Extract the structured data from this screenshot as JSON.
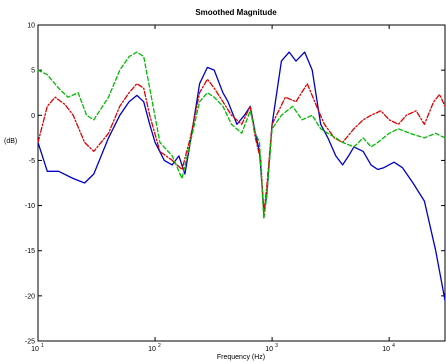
{
  "chart_data": {
    "type": "line",
    "title": "Smoothed Magnitude",
    "xlabel": "Frequency (Hz)",
    "ylabel": "(dB)",
    "xscale": "log",
    "xlim": [
      10,
      30000
    ],
    "ylim": [
      -25,
      10
    ],
    "grid": false,
    "yticks": [
      10,
      5,
      0,
      -5,
      -10,
      -15,
      -20,
      -25
    ],
    "ytick_labels": [
      "10",
      "5",
      "0",
      "-5",
      "-10",
      "-15",
      "-20",
      "-25"
    ],
    "xticks": [
      {
        "value": 10,
        "base": "10",
        "exp": "1"
      },
      {
        "value": 100,
        "base": "10",
        "exp": "2"
      },
      {
        "value": 1000,
        "base": "10",
        "exp": "3"
      },
      {
        "value": 10000,
        "base": "10",
        "exp": "4"
      }
    ],
    "series": [
      {
        "style": "solid",
        "color": "#0000cc",
        "points": [
          [
            10,
            -3
          ],
          [
            12,
            -6.2
          ],
          [
            15,
            -6.2
          ],
          [
            20,
            -7
          ],
          [
            25,
            -7.5
          ],
          [
            30,
            -6.5
          ],
          [
            40,
            -2.5
          ],
          [
            50,
            0
          ],
          [
            60,
            1.5
          ],
          [
            70,
            2.2
          ],
          [
            80,
            1.5
          ],
          [
            90,
            -1
          ],
          [
            100,
            -3
          ],
          [
            120,
            -5
          ],
          [
            140,
            -5.5
          ],
          [
            160,
            -4.5
          ],
          [
            180,
            -6.5
          ],
          [
            200,
            -3
          ],
          [
            240,
            3.5
          ],
          [
            280,
            5.3
          ],
          [
            320,
            5
          ],
          [
            380,
            2.5
          ],
          [
            420,
            1.5
          ],
          [
            500,
            -1
          ],
          [
            580,
            0
          ],
          [
            650,
            1
          ],
          [
            720,
            -2
          ],
          [
            780,
            -4
          ],
          [
            850,
            -10.5
          ],
          [
            900,
            -9
          ],
          [
            1000,
            -1
          ],
          [
            1200,
            6
          ],
          [
            1400,
            7
          ],
          [
            1600,
            6
          ],
          [
            1900,
            7
          ],
          [
            2200,
            5
          ],
          [
            2600,
            -1
          ],
          [
            3000,
            -2.5
          ],
          [
            3500,
            -4.5
          ],
          [
            4000,
            -5.5
          ],
          [
            4500,
            -4.5
          ],
          [
            5000,
            -3.5
          ],
          [
            6000,
            -4
          ],
          [
            7000,
            -5.5
          ],
          [
            8000,
            -6
          ],
          [
            9000,
            -5.8
          ],
          [
            11000,
            -5.2
          ],
          [
            13000,
            -5.8
          ],
          [
            16000,
            -7.5
          ],
          [
            20000,
            -9.5
          ],
          [
            25000,
            -15
          ],
          [
            30000,
            -20.5
          ]
        ]
      },
      {
        "style": "dashdot",
        "color": "#dd0000",
        "points": [
          [
            10,
            -3
          ],
          [
            12,
            1
          ],
          [
            14,
            2
          ],
          [
            17,
            1.2
          ],
          [
            20,
            0
          ],
          [
            25,
            -3
          ],
          [
            30,
            -4
          ],
          [
            40,
            -2
          ],
          [
            50,
            1
          ],
          [
            60,
            2.5
          ],
          [
            70,
            3.5
          ],
          [
            80,
            3
          ],
          [
            90,
            0
          ],
          [
            110,
            -4
          ],
          [
            140,
            -5
          ],
          [
            170,
            -6
          ],
          [
            200,
            -2.5
          ],
          [
            240,
            2.5
          ],
          [
            280,
            4
          ],
          [
            320,
            3
          ],
          [
            380,
            1.5
          ],
          [
            450,
            0
          ],
          [
            550,
            -1
          ],
          [
            650,
            1
          ],
          [
            720,
            -2.5
          ],
          [
            800,
            -5
          ],
          [
            850,
            -11
          ],
          [
            900,
            -8
          ],
          [
            1000,
            -1
          ],
          [
            1300,
            2
          ],
          [
            1600,
            1.5
          ],
          [
            2000,
            3.5
          ],
          [
            2400,
            1
          ],
          [
            2800,
            -1
          ],
          [
            3400,
            -2.5
          ],
          [
            4000,
            -3
          ],
          [
            5000,
            -1.5
          ],
          [
            6000,
            -0.5
          ],
          [
            7000,
            0
          ],
          [
            8500,
            0.5
          ],
          [
            10000,
            -0.5
          ],
          [
            12000,
            -1
          ],
          [
            14000,
            0
          ],
          [
            17000,
            0.5
          ],
          [
            20000,
            -1
          ],
          [
            24000,
            1.5
          ],
          [
            27000,
            2.3
          ],
          [
            30000,
            1
          ]
        ]
      },
      {
        "style": "dashed",
        "color": "#00bb00",
        "points": [
          [
            10,
            5
          ],
          [
            12,
            4.5
          ],
          [
            15,
            3
          ],
          [
            18,
            2
          ],
          [
            22,
            2.5
          ],
          [
            26,
            0
          ],
          [
            30,
            -0.5
          ],
          [
            40,
            2
          ],
          [
            50,
            5
          ],
          [
            60,
            6.5
          ],
          [
            70,
            7
          ],
          [
            80,
            6.5
          ],
          [
            90,
            3
          ],
          [
            110,
            -3
          ],
          [
            140,
            -4.5
          ],
          [
            170,
            -7
          ],
          [
            200,
            -3
          ],
          [
            240,
            1.5
          ],
          [
            280,
            2.5
          ],
          [
            320,
            2
          ],
          [
            380,
            1
          ],
          [
            450,
            -1
          ],
          [
            550,
            -2
          ],
          [
            650,
            0.5
          ],
          [
            720,
            -2
          ],
          [
            780,
            -3
          ],
          [
            850,
            -11.5
          ],
          [
            900,
            -9
          ],
          [
            1000,
            -1.5
          ],
          [
            1200,
            0
          ],
          [
            1500,
            1
          ],
          [
            1800,
            -0.5
          ],
          [
            2200,
            0
          ],
          [
            2600,
            -1.5
          ],
          [
            3000,
            -2
          ],
          [
            3500,
            -2.5
          ],
          [
            4000,
            -3
          ],
          [
            5000,
            -3.5
          ],
          [
            6000,
            -2.5
          ],
          [
            7000,
            -3.5
          ],
          [
            8000,
            -3
          ],
          [
            10000,
            -2
          ],
          [
            12000,
            -1.5
          ],
          [
            15000,
            -2
          ],
          [
            20000,
            -2.5
          ],
          [
            25000,
            -2
          ],
          [
            30000,
            -2.5
          ]
        ]
      }
    ]
  }
}
